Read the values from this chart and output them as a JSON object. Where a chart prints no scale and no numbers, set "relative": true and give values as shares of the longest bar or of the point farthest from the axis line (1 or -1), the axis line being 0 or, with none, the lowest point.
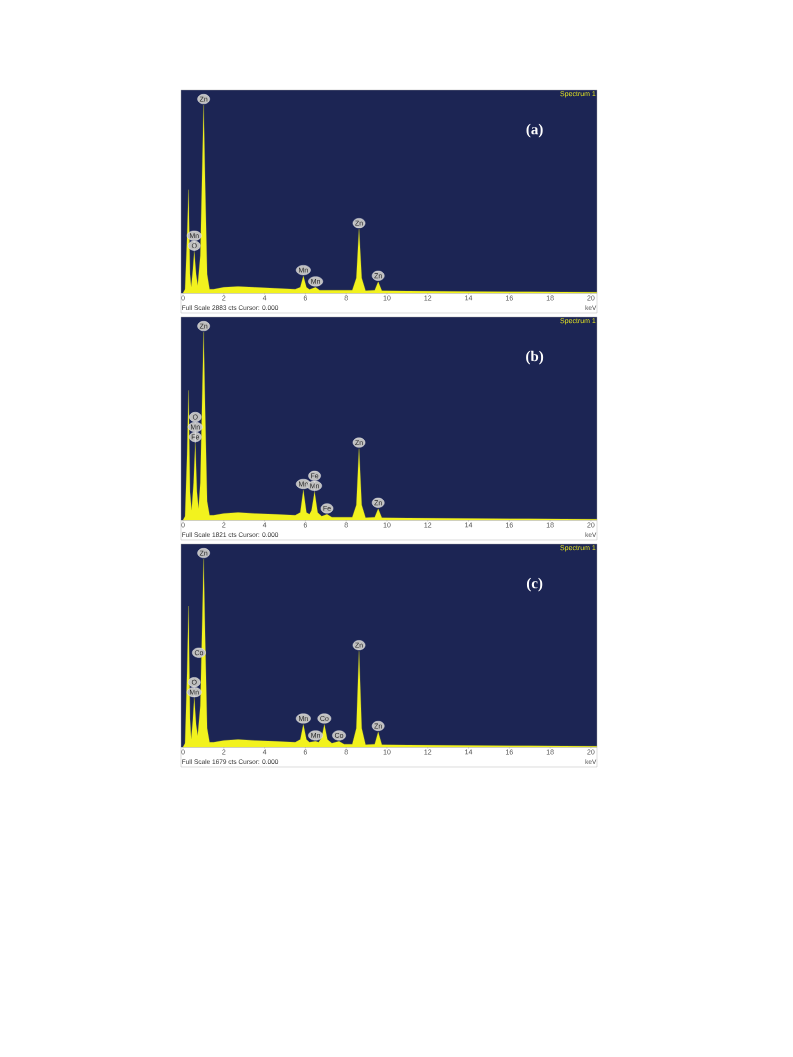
{
  "chart_data": [
    {
      "type": "area",
      "title": "(a)",
      "xlabel": "keV",
      "relative": true,
      "color": "#f2f21e",
      "xlim": [
        -0.1,
        20.3
      ],
      "xticks": [
        0,
        2,
        4,
        6,
        8,
        10,
        12,
        14,
        16,
        18,
        20
      ],
      "x": [
        0,
        0.1,
        0.2,
        0.27,
        0.34,
        0.4,
        0.48,
        0.55,
        0.64,
        0.72,
        0.85,
        0.95,
        1.01,
        1.08,
        1.18,
        1.3,
        1.5,
        2,
        2.7,
        3.5,
        4.5,
        5.5,
        5.75,
        5.9,
        6.05,
        6.2,
        6.5,
        6.7,
        7.5,
        8.3,
        8.5,
        8.63,
        8.76,
        8.95,
        9.4,
        9.57,
        9.75,
        11,
        14,
        17,
        20.3
      ],
      "values": [
        0,
        0.02,
        0.3,
        0.55,
        0.1,
        0.03,
        0.12,
        0.22,
        0.1,
        0.04,
        0.2,
        0.7,
        1.0,
        0.6,
        0.1,
        0.02,
        0.02,
        0.03,
        0.035,
        0.03,
        0.025,
        0.02,
        0.03,
        0.09,
        0.03,
        0.018,
        0.03,
        0.015,
        0.015,
        0.015,
        0.08,
        0.34,
        0.08,
        0.012,
        0.015,
        0.06,
        0.012,
        0.01,
        0.008,
        0.006,
        0.004
      ],
      "annotations": [
        "Spectrum 1",
        "Full Scale 2883 cts Cursor: 0.000",
        {
          "text": "Zn",
          "x": 1.01,
          "y": 1.0
        },
        {
          "text": "O",
          "x": 0.55,
          "y": 0.22
        },
        {
          "text": "Mn",
          "x": 0.55,
          "y": 0.22
        },
        {
          "text": "Mn",
          "x": 5.9,
          "y": 0.09
        },
        {
          "text": "Mn",
          "x": 6.5,
          "y": 0.03
        },
        {
          "text": "Zn",
          "x": 8.63,
          "y": 0.34
        },
        {
          "text": "Zn",
          "x": 9.57,
          "y": 0.06
        }
      ]
    },
    {
      "type": "area",
      "title": "(b)",
      "xlabel": "keV",
      "relative": true,
      "color": "#f2f21e",
      "xlim": [
        -0.1,
        20.3
      ],
      "xticks": [
        0,
        2,
        4,
        6,
        8,
        10,
        12,
        14,
        16,
        18,
        20
      ],
      "x": [
        0,
        0.1,
        0.2,
        0.27,
        0.34,
        0.42,
        0.52,
        0.6,
        0.68,
        0.76,
        0.85,
        0.95,
        1.01,
        1.08,
        1.18,
        1.3,
        1.5,
        2,
        2.7,
        3.5,
        4.5,
        5.5,
        5.75,
        5.9,
        6.05,
        6.2,
        6.3,
        6.45,
        6.6,
        6.8,
        7.06,
        7.3,
        8.3,
        8.5,
        8.63,
        8.76,
        8.95,
        9.4,
        9.57,
        9.75,
        11,
        14,
        17,
        20.3
      ],
      "values": [
        0,
        0.02,
        0.35,
        0.69,
        0.15,
        0.05,
        0.2,
        0.41,
        0.15,
        0.06,
        0.2,
        0.7,
        1.0,
        0.6,
        0.1,
        0.025,
        0.025,
        0.035,
        0.04,
        0.035,
        0.03,
        0.025,
        0.04,
        0.16,
        0.04,
        0.03,
        0.05,
        0.15,
        0.04,
        0.02,
        0.03,
        0.015,
        0.015,
        0.08,
        0.38,
        0.08,
        0.012,
        0.015,
        0.06,
        0.012,
        0.01,
        0.008,
        0.006,
        0.004
      ],
      "annotations": [
        "Spectrum 1",
        "Full Scale 1821 cts Cursor: 0.000",
        {
          "text": "Zn",
          "x": 1.01,
          "y": 1.0
        },
        {
          "text": "Fe",
          "x": 0.6,
          "y": 0.41
        },
        {
          "text": "Mn",
          "x": 0.6,
          "y": 0.41
        },
        {
          "text": "O",
          "x": 0.6,
          "y": 0.41
        },
        {
          "text": "Mn",
          "x": 5.9,
          "y": 0.16
        },
        {
          "text": "Mn",
          "x": 6.45,
          "y": 0.15
        },
        {
          "text": "Fe",
          "x": 6.45,
          "y": 0.15
        },
        {
          "text": "Fe",
          "x": 7.06,
          "y": 0.03
        },
        {
          "text": "Zn",
          "x": 8.63,
          "y": 0.38
        },
        {
          "text": "Zn",
          "x": 9.57,
          "y": 0.06
        }
      ]
    },
    {
      "type": "area",
      "title": "(c)",
      "xlabel": "keV",
      "relative": true,
      "color": "#f2f21e",
      "xlim": [
        -0.1,
        20.3
      ],
      "xticks": [
        0,
        2,
        4,
        6,
        8,
        10,
        12,
        14,
        16,
        18,
        20
      ],
      "x": [
        0,
        0.1,
        0.2,
        0.27,
        0.34,
        0.4,
        0.48,
        0.55,
        0.64,
        0.72,
        0.85,
        0.95,
        1.01,
        1.08,
        1.18,
        1.3,
        1.5,
        2,
        2.7,
        3.5,
        4.5,
        5.5,
        5.75,
        5.9,
        6.05,
        6.2,
        6.5,
        6.65,
        6.8,
        6.93,
        7.08,
        7.3,
        7.65,
        7.9,
        8.3,
        8.5,
        8.63,
        8.76,
        8.95,
        9.4,
        9.57,
        9.75,
        11,
        14,
        17,
        20.3
      ],
      "values": [
        0,
        0.02,
        0.4,
        0.75,
        0.15,
        0.04,
        0.14,
        0.26,
        0.12,
        0.06,
        0.22,
        0.7,
        1.0,
        0.6,
        0.1,
        0.025,
        0.025,
        0.035,
        0.04,
        0.035,
        0.03,
        0.025,
        0.04,
        0.12,
        0.04,
        0.025,
        0.03,
        0.025,
        0.05,
        0.12,
        0.04,
        0.02,
        0.03,
        0.015,
        0.015,
        0.1,
        0.51,
        0.1,
        0.012,
        0.015,
        0.08,
        0.012,
        0.01,
        0.008,
        0.006,
        0.004
      ],
      "annotations": [
        "Spectrum 1",
        "Full Scale 1679 cts Cursor: 0.000",
        {
          "text": "Zn",
          "x": 1.01,
          "y": 1.0
        },
        {
          "text": "Co",
          "x": 0.78,
          "y": 0.47
        },
        {
          "text": "Mn",
          "x": 0.55,
          "y": 0.26
        },
        {
          "text": "O",
          "x": 0.55,
          "y": 0.26
        },
        {
          "text": "Mn",
          "x": 5.9,
          "y": 0.12
        },
        {
          "text": "Mn",
          "x": 6.5,
          "y": 0.03
        },
        {
          "text": "Co",
          "x": 6.93,
          "y": 0.12
        },
        {
          "text": "Co",
          "x": 7.65,
          "y": 0.03
        },
        {
          "text": "Zn",
          "x": 8.63,
          "y": 0.51
        },
        {
          "text": "Zn",
          "x": 9.57,
          "y": 0.08
        }
      ]
    }
  ]
}
